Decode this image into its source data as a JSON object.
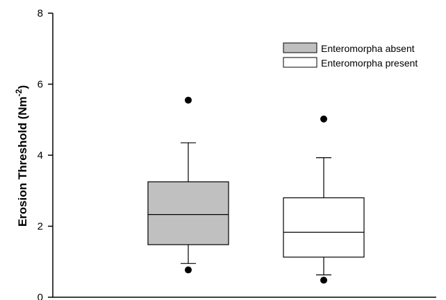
{
  "chart_data": {
    "type": "boxplot",
    "ylabel": "Erosion Threshold (Nm",
    "ylabel_sup": "-2",
    "ylabel_close": ")",
    "ylim": [
      0,
      8
    ],
    "yticks": [
      0,
      2,
      4,
      6,
      8
    ],
    "grid": false,
    "legend_position": "top-right",
    "series": [
      {
        "name": "Enteromorpha absent",
        "color": "#c0c0c0",
        "whisker_low": 0.95,
        "q1": 1.48,
        "median": 2.33,
        "q3": 3.25,
        "whisker_high": 4.35,
        "outliers": [
          0.77,
          5.55
        ]
      },
      {
        "name": "Enteromorpha present",
        "color": "#ffffff",
        "whisker_low": 0.63,
        "q1": 1.13,
        "median": 1.83,
        "q3": 2.8,
        "whisker_high": 3.93,
        "outliers": [
          0.48,
          5.02
        ]
      }
    ]
  }
}
